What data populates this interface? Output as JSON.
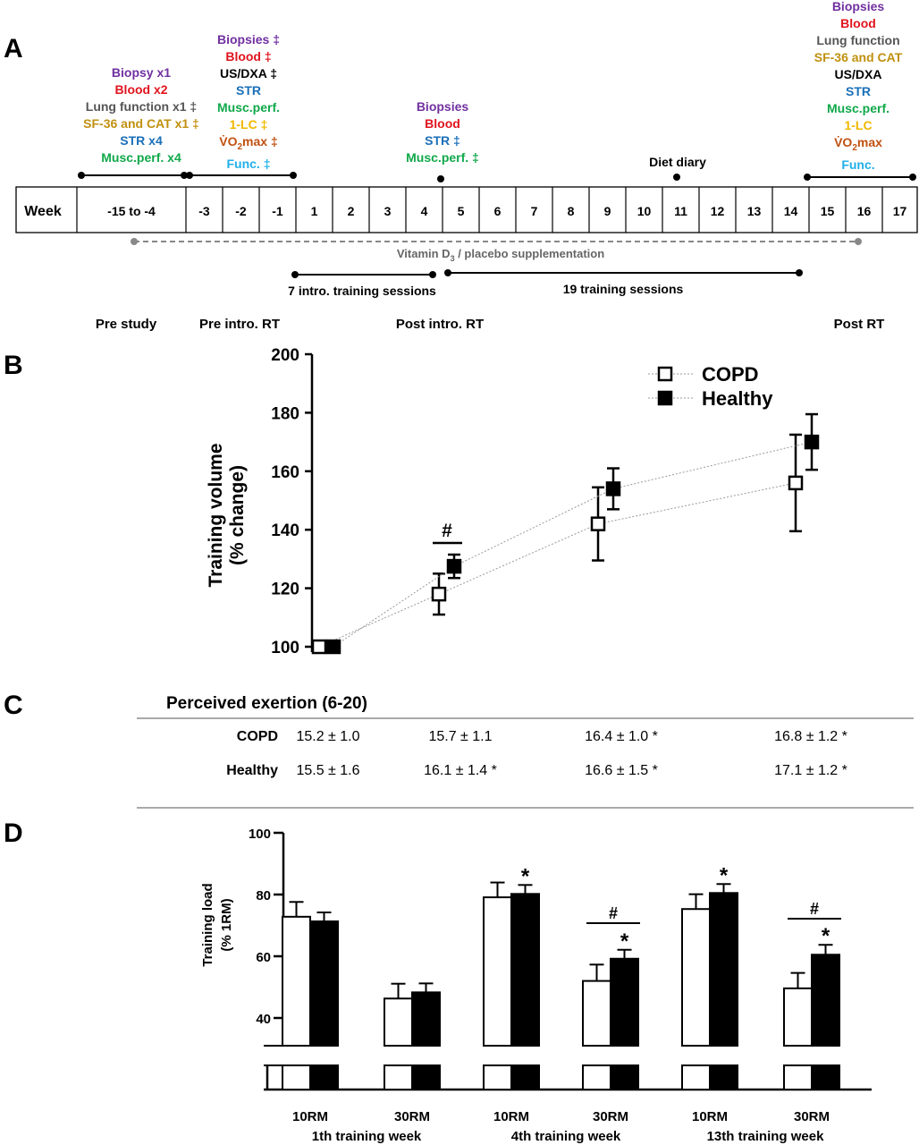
{
  "panels": {
    "a": "A",
    "b": "B",
    "c": "C",
    "d": "D"
  },
  "colors": {
    "purple": "#7030a0",
    "red": "#e0141e",
    "gray": "#555555",
    "gold": "#c09010",
    "black": "#000000",
    "blue": "#1a6fb8",
    "green": "#10a84a",
    "yellow": "#f0b800",
    "orange": "#c05010",
    "cyan": "#20b0e8",
    "brown": "#8b1a1a"
  },
  "timeline": {
    "week_label": "Week",
    "weeks": [
      "-15 to -4",
      "-3",
      "-2",
      "-1",
      "1",
      "2",
      "3",
      "4",
      "5",
      "6",
      "7",
      "8",
      "9",
      "10",
      "11",
      "12",
      "13",
      "14",
      "15",
      "16",
      "17"
    ],
    "supplementation_label": "Vitamin D3 / placebo supplementation",
    "intro_training_label": "7 intro. training sessions",
    "training_label": "19 training sessions",
    "diet_diary": "Diet diary",
    "phases": [
      "Pre study",
      "Pre intro. RT",
      "Post intro. RT",
      "Post RT"
    ],
    "pre_study_items": [
      {
        "text": "Biopsy x1",
        "color": "purple"
      },
      {
        "text": "Blood x2",
        "color": "red"
      },
      {
        "text": "Lung function x1 ‡",
        "color": "gray"
      },
      {
        "text": "SF-36 and CAT x1 ‡",
        "color": "gold"
      },
      {
        "text": "STR x4",
        "color": "blue"
      },
      {
        "text": "Musc.perf. x4",
        "color": "green"
      }
    ],
    "pre_intro_items": [
      {
        "text": "Biopsies ‡",
        "color": "purple"
      },
      {
        "text": "Blood ‡",
        "color": "red"
      },
      {
        "text": "US/DXA ‡",
        "color": "black"
      },
      {
        "text": "STR",
        "color": "blue"
      },
      {
        "text": "Musc.perf.",
        "color": "green"
      },
      {
        "text": "1-LC ‡",
        "color": "yellow"
      },
      {
        "text": "VO2max ‡",
        "color": "orange"
      },
      {
        "text": "Func. ‡",
        "color": "cyan"
      }
    ],
    "post_intro_items": [
      {
        "text": "Biopsies",
        "color": "purple"
      },
      {
        "text": "Blood",
        "color": "red"
      },
      {
        "text": "STR ‡",
        "color": "blue"
      },
      {
        "text": "Musc.perf. ‡",
        "color": "green"
      }
    ],
    "post_rt_items": [
      {
        "text": "Biopsies",
        "color": "purple"
      },
      {
        "text": "Blood",
        "color": "red"
      },
      {
        "text": "Lung function",
        "color": "gray"
      },
      {
        "text": "SF-36 and CAT",
        "color": "gold"
      },
      {
        "text": "US/DXA",
        "color": "black"
      },
      {
        "text": "STR",
        "color": "blue"
      },
      {
        "text": "Musc.perf.",
        "color": "green"
      },
      {
        "text": "1-LC",
        "color": "yellow"
      },
      {
        "text": "VO2max",
        "color": "orange"
      },
      {
        "text": "Func.",
        "color": "cyan"
      }
    ]
  },
  "chart_data": [
    {
      "type": "line",
      "ylabel": "Training volume (% change)",
      "ylim": [
        100,
        200
      ],
      "yticks": [
        100,
        120,
        140,
        160,
        180,
        200
      ],
      "legend_position": "top-right",
      "annotation": "#",
      "series": [
        {
          "name": "COPD",
          "marker": "open-square",
          "values": [
            100,
            118,
            142,
            156
          ],
          "errors": [
            1.5,
            7,
            12.5,
            16.5
          ]
        },
        {
          "name": "Healthy",
          "marker": "filled-square",
          "values": [
            100,
            127.5,
            154,
            170
          ],
          "errors": [
            1,
            4,
            7,
            9.5
          ]
        }
      ]
    },
    {
      "type": "table",
      "title": "Perceived exertion (6-20)",
      "rows": [
        {
          "label": "COPD",
          "cells": [
            "15.2 ± 1.0",
            "15.7 ± 1.1",
            "16.4 ± 1.0 *",
            "16.8 ± 1.2 *"
          ]
        },
        {
          "label": "Healthy",
          "cells": [
            "15.5 ± 1.6",
            "16.1 ± 1.4 *",
            "16.6 ± 1.5 *",
            "17.1 ± 1.2 *"
          ]
        }
      ]
    },
    {
      "type": "bar",
      "ylabel": "Training load (% 1RM)",
      "ylim": [
        30,
        100
      ],
      "yticks": [
        40,
        60,
        80,
        100
      ],
      "categories": [
        "10RM",
        "30RM",
        "10RM",
        "30RM",
        "10RM",
        "30RM"
      ],
      "groups": [
        "1th training week",
        "4th training week",
        "13th training week"
      ],
      "series": [
        {
          "name": "COPD",
          "fill": "white",
          "values": [
            72.8,
            46.3,
            79.1,
            52,
            75.3,
            49.6
          ],
          "errors": [
            4.8,
            4.8,
            4.8,
            5.3,
            4.8,
            5
          ]
        },
        {
          "name": "Healthy",
          "fill": "black",
          "values": [
            71.3,
            48.3,
            80.2,
            59.2,
            80.5,
            60.5
          ],
          "errors": [
            2.9,
            2.9,
            2.9,
            2.9,
            2.9,
            3.2
          ]
        }
      ],
      "star_marks": [
        "",
        "",
        "*",
        "*",
        "*",
        "*"
      ],
      "hash_marks": [
        "",
        "",
        "",
        "#",
        "",
        "#"
      ]
    }
  ]
}
